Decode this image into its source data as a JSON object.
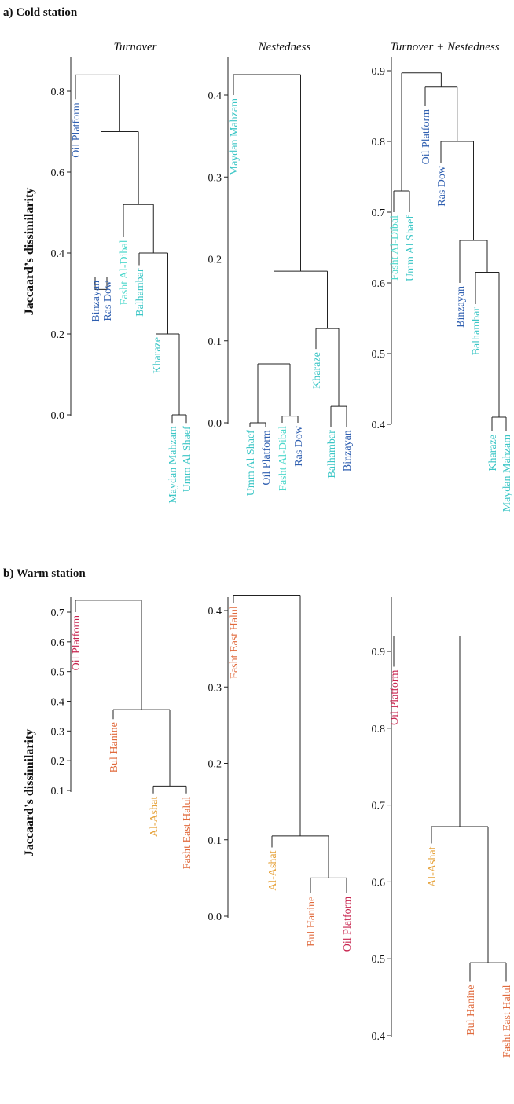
{
  "figure": {
    "section_a": "a) Cold station",
    "section_b": "b) Warm station",
    "ylabel": "Jaccaard’s dissimilarity"
  },
  "colors": {
    "oil_platform_cold": "#2f5fb0",
    "ras_dow": "#2f5fb0",
    "binzayan": "#2f5fb0",
    "cyan": "#3cc6c6",
    "light_cyan": "#4fd8cc",
    "crimson": "#c8254f",
    "orange_red": "#e06a3c",
    "gold": "#e6a23a",
    "line": "#222222"
  },
  "chart_data": [
    {
      "type": "dendrogram",
      "panel": "cold-turnover",
      "title": "Turnover",
      "ylabel": "Jaccaard’s dissimilarity",
      "ylim": [
        0,
        0.8
      ],
      "yticks": [
        0.0,
        0.2,
        0.4,
        0.6,
        0.8
      ],
      "leaves": [
        {
          "label": "Oil Platform",
          "color": "#2f5fb0"
        },
        {
          "label": "Binzayan",
          "color": "#2f5fb0"
        },
        {
          "label": "Ras Dow",
          "color": "#2f5fb0"
        },
        {
          "label": "Fasht Al-Dibal",
          "color": "#4fd8cc"
        },
        {
          "label": "Balhambar",
          "color": "#3cc6c6"
        },
        {
          "label": "Kharaze",
          "color": "#3cc6c6"
        },
        {
          "label": "Maydan Mahzam",
          "color": "#3cc6c6"
        },
        {
          "label": "Umm Al Shaef",
          "color": "#3cc6c6"
        }
      ],
      "leaf_heights": [
        0.78,
        0.34,
        0.34,
        0.44,
        0.37,
        0.2,
        -0.02,
        -0.02
      ],
      "merges": [
        [
          6,
          7,
          0.0
        ],
        [
          5,
          8,
          0.2
        ],
        [
          4,
          9,
          0.4
        ],
        [
          3,
          10,
          0.52
        ],
        [
          1,
          2,
          0.31
        ],
        [
          12,
          11,
          0.7
        ],
        [
          0,
          13,
          0.84
        ]
      ]
    },
    {
      "type": "dendrogram",
      "panel": "cold-nestedness",
      "title": "Nestedness",
      "ylim": [
        0,
        0.4
      ],
      "yticks": [
        0.0,
        0.1,
        0.2,
        0.3,
        0.4
      ],
      "leaves": [
        {
          "label": "Maydan Mahzam",
          "color": "#3cc6c6"
        },
        {
          "label": "Umm Al Shaef",
          "color": "#3cc6c6"
        },
        {
          "label": "Oil Platform",
          "color": "#2f5fb0"
        },
        {
          "label": "Fasht Al-Dibal",
          "color": "#4fd8cc"
        },
        {
          "label": "Ras Dow",
          "color": "#2f5fb0"
        },
        {
          "label": "Kharaze",
          "color": "#3cc6c6"
        },
        {
          "label": "Balhambar",
          "color": "#3cc6c6"
        },
        {
          "label": "Binzayan",
          "color": "#2f5fb0"
        }
      ],
      "leaf_heights": [
        0.4,
        -0.005,
        -0.005,
        0.0,
        0.0,
        0.09,
        -0.005,
        -0.005
      ],
      "merges": [
        [
          1,
          2,
          0.0
        ],
        [
          3,
          4,
          0.008
        ],
        [
          8,
          9,
          0.072
        ],
        [
          6,
          7,
          0.02
        ],
        [
          5,
          11,
          0.115
        ],
        [
          10,
          12,
          0.185
        ],
        [
          0,
          13,
          0.425
        ]
      ]
    },
    {
      "type": "dendrogram",
      "panel": "cold-total",
      "title": "Turnover + Nestedness",
      "ylim": [
        0.4,
        0.9
      ],
      "yticks": [
        0.4,
        0.5,
        0.6,
        0.7,
        0.8,
        0.9
      ],
      "leaves": [
        {
          "label": "Fasht Al-Dibal",
          "color": "#4fd8cc"
        },
        {
          "label": "Umm Al Shaef",
          "color": "#3cc6c6"
        },
        {
          "label": "Oil Platform",
          "color": "#2f5fb0"
        },
        {
          "label": "Ras Dow",
          "color": "#2f5fb0"
        },
        {
          "label": "Binzayan",
          "color": "#2f5fb0"
        },
        {
          "label": "Balhambar",
          "color": "#3cc6c6"
        },
        {
          "label": "Kharaze",
          "color": "#3cc6c6"
        },
        {
          "label": "Maydan Mahzam",
          "color": "#3cc6c6"
        }
      ],
      "leaf_heights": [
        0.7,
        0.7,
        0.85,
        0.77,
        0.6,
        0.57,
        0.39,
        0.39
      ],
      "merges": [
        [
          0,
          1,
          0.73
        ],
        [
          6,
          7,
          0.41
        ],
        [
          5,
          9,
          0.615
        ],
        [
          4,
          10,
          0.66
        ],
        [
          3,
          11,
          0.8
        ],
        [
          2,
          12,
          0.877
        ],
        [
          8,
          13,
          0.897
        ]
      ]
    },
    {
      "type": "dendrogram",
      "panel": "warm-turnover",
      "title": "",
      "ylabel": "Jaccaard’s dissimilarity",
      "ylim": [
        0.1,
        0.7
      ],
      "yticks": [
        0.1,
        0.2,
        0.3,
        0.4,
        0.5,
        0.6,
        0.7
      ],
      "leaves": [
        {
          "label": "Oil Platform",
          "color": "#c8254f"
        },
        {
          "label": "Bul Hanine",
          "color": "#e06a3c"
        },
        {
          "label": "Al-Ashat",
          "color": "#e6a23a"
        },
        {
          "label": "Fasht East Halul",
          "color": "#e06a3c"
        }
      ],
      "leaf_heights": [
        0.7,
        0.34,
        0.09,
        0.09
      ],
      "merges": [
        [
          2,
          3,
          0.115
        ],
        [
          1,
          4,
          0.372
        ],
        [
          0,
          5,
          0.74
        ]
      ]
    },
    {
      "type": "dendrogram",
      "panel": "warm-nestedness",
      "title": "",
      "ylim": [
        0,
        0.4
      ],
      "yticks": [
        0.0,
        0.1,
        0.2,
        0.3,
        0.4
      ],
      "leaves": [
        {
          "label": "Fasht East Halul",
          "color": "#e06a3c"
        },
        {
          "label": "Al-Ashat",
          "color": "#e6a23a"
        },
        {
          "label": "Bul Hanine",
          "color": "#e06a3c"
        },
        {
          "label": "Oil Platform",
          "color": "#c8254f"
        }
      ],
      "leaf_heights": [
        0.41,
        0.09,
        0.03,
        0.03
      ],
      "merges": [
        [
          2,
          3,
          0.05
        ],
        [
          1,
          4,
          0.105
        ],
        [
          0,
          5,
          0.42
        ]
      ]
    },
    {
      "type": "dendrogram",
      "panel": "warm-total",
      "title": "",
      "ylim": [
        0.4,
        0.9
      ],
      "yticks": [
        0.4,
        0.5,
        0.6,
        0.7,
        0.8,
        0.9
      ],
      "leaves": [
        {
          "label": "Oil Platform",
          "color": "#c8254f"
        },
        {
          "label": "Al-Ashat",
          "color": "#e6a23a"
        },
        {
          "label": "Bul Hanine",
          "color": "#e06a3c"
        },
        {
          "label": "Fasht East Halul",
          "color": "#e06a3c"
        }
      ],
      "leaf_heights": [
        0.88,
        0.65,
        0.47,
        0.47
      ],
      "merges": [
        [
          2,
          3,
          0.495
        ],
        [
          1,
          4,
          0.672
        ],
        [
          0,
          5,
          0.92
        ]
      ]
    }
  ]
}
